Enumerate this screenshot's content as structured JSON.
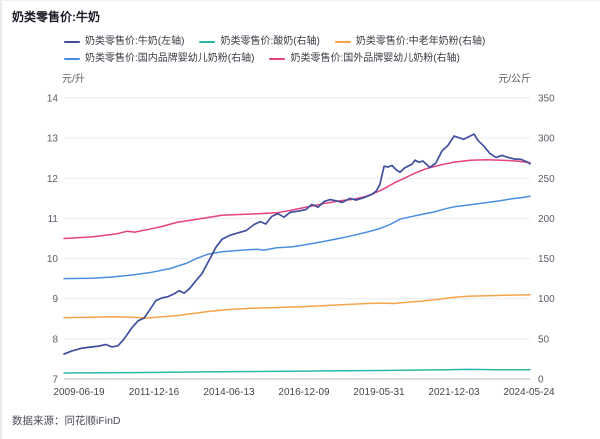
{
  "title": "奶类零售价:牛奶",
  "footer": {
    "source": "数据来源：同花顺iFinD"
  },
  "axes": {
    "left_unit": "元/升",
    "right_unit": "元/公斤"
  },
  "chart_data": {
    "type": "line",
    "title": "奶类零售价:牛奶",
    "grid": true,
    "legend_position": "top",
    "legend_rows": [
      [
        0,
        1,
        2
      ],
      [
        3,
        4
      ]
    ],
    "x_tick_labels": [
      "2009-06-19",
      "2011-12-16",
      "2014-06-13",
      "2016-12-09",
      "2019-05-31",
      "2021-12-03",
      "2024-05-24"
    ],
    "left_axis": {
      "unit": "元/升",
      "range": [
        7,
        14
      ],
      "ticks": [
        7,
        8,
        9,
        10,
        11,
        12,
        13,
        14
      ]
    },
    "right_axis": {
      "unit": "元/公斤",
      "range": [
        0,
        350
      ],
      "ticks": [
        0,
        50,
        100,
        150,
        200,
        250,
        300,
        350
      ]
    },
    "series": [
      {
        "name": "奶类零售价:牛奶(左轴)",
        "axis": "left",
        "color": "#3f4f9d",
        "points": [
          [
            0,
            7.62
          ],
          [
            0.017,
            7.7
          ],
          [
            0.039,
            7.77
          ],
          [
            0.06,
            7.8
          ],
          [
            0.075,
            7.82
          ],
          [
            0.09,
            7.86
          ],
          [
            0.103,
            7.8
          ],
          [
            0.116,
            7.83
          ],
          [
            0.129,
            8.0
          ],
          [
            0.146,
            8.28
          ],
          [
            0.159,
            8.45
          ],
          [
            0.172,
            8.52
          ],
          [
            0.185,
            8.74
          ],
          [
            0.197,
            8.95
          ],
          [
            0.21,
            9.02
          ],
          [
            0.223,
            9.05
          ],
          [
            0.236,
            9.12
          ],
          [
            0.247,
            9.2
          ],
          [
            0.258,
            9.14
          ],
          [
            0.27,
            9.26
          ],
          [
            0.283,
            9.45
          ],
          [
            0.296,
            9.62
          ],
          [
            0.311,
            9.95
          ],
          [
            0.326,
            10.28
          ],
          [
            0.339,
            10.48
          ],
          [
            0.356,
            10.58
          ],
          [
            0.373,
            10.64
          ],
          [
            0.391,
            10.7
          ],
          [
            0.408,
            10.85
          ],
          [
            0.421,
            10.92
          ],
          [
            0.433,
            10.86
          ],
          [
            0.446,
            11.05
          ],
          [
            0.459,
            11.12
          ],
          [
            0.472,
            11.03
          ],
          [
            0.485,
            11.15
          ],
          [
            0.502,
            11.18
          ],
          [
            0.519,
            11.22
          ],
          [
            0.532,
            11.35
          ],
          [
            0.545,
            11.28
          ],
          [
            0.558,
            11.42
          ],
          [
            0.571,
            11.47
          ],
          [
            0.584,
            11.44
          ],
          [
            0.597,
            11.4
          ],
          [
            0.614,
            11.5
          ],
          [
            0.627,
            11.46
          ],
          [
            0.644,
            11.52
          ],
          [
            0.661,
            11.6
          ],
          [
            0.67,
            11.68
          ],
          [
            0.678,
            11.85
          ],
          [
            0.687,
            12.3
          ],
          [
            0.695,
            12.28
          ],
          [
            0.704,
            12.32
          ],
          [
            0.712,
            12.22
          ],
          [
            0.721,
            12.15
          ],
          [
            0.73,
            12.25
          ],
          [
            0.738,
            12.3
          ],
          [
            0.747,
            12.35
          ],
          [
            0.753,
            12.45
          ],
          [
            0.762,
            12.4
          ],
          [
            0.77,
            12.43
          ],
          [
            0.785,
            12.27
          ],
          [
            0.798,
            12.38
          ],
          [
            0.811,
            12.68
          ],
          [
            0.824,
            12.82
          ],
          [
            0.837,
            13.05
          ],
          [
            0.85,
            13.0
          ],
          [
            0.858,
            12.97
          ],
          [
            0.871,
            13.05
          ],
          [
            0.88,
            13.1
          ],
          [
            0.888,
            12.95
          ],
          [
            0.901,
            12.8
          ],
          [
            0.914,
            12.62
          ],
          [
            0.927,
            12.52
          ],
          [
            0.94,
            12.57
          ],
          [
            0.953,
            12.52
          ],
          [
            0.966,
            12.48
          ],
          [
            0.981,
            12.47
          ],
          [
            0.991,
            12.42
          ],
          [
            1,
            12.36
          ]
        ]
      },
      {
        "name": "奶类零售价:酸奶(右轴)",
        "axis": "right",
        "color": "#28b8a8",
        "points": [
          [
            0,
            7.5
          ],
          [
            0.15,
            8
          ],
          [
            0.3,
            8.8
          ],
          [
            0.45,
            9.5
          ],
          [
            0.6,
            10.2
          ],
          [
            0.72,
            10.8
          ],
          [
            0.82,
            11.5
          ],
          [
            0.87,
            12
          ],
          [
            0.93,
            11.6
          ],
          [
            1,
            11.5
          ]
        ]
      },
      {
        "name": "奶类零售价:中老年奶粉(右轴)",
        "axis": "right",
        "color": "#f7a348",
        "points": [
          [
            0,
            76.5
          ],
          [
            0.06,
            77
          ],
          [
            0.103,
            77.5
          ],
          [
            0.146,
            77
          ],
          [
            0.178,
            76
          ],
          [
            0.21,
            77.5
          ],
          [
            0.242,
            79
          ],
          [
            0.275,
            81.5
          ],
          [
            0.307,
            84
          ],
          [
            0.35,
            86.5
          ],
          [
            0.403,
            88
          ],
          [
            0.457,
            89
          ],
          [
            0.511,
            90
          ],
          [
            0.564,
            91.5
          ],
          [
            0.618,
            93
          ],
          [
            0.65,
            94
          ],
          [
            0.682,
            94.5
          ],
          [
            0.708,
            94
          ],
          [
            0.736,
            95.5
          ],
          [
            0.768,
            97
          ],
          [
            0.8,
            99
          ],
          [
            0.833,
            101.5
          ],
          [
            0.865,
            103
          ],
          [
            0.897,
            103.5
          ],
          [
            0.929,
            104
          ],
          [
            0.961,
            104.5
          ],
          [
            1,
            105
          ]
        ]
      },
      {
        "name": "奶类零售价:国内品牌婴幼儿奶粉(右轴)",
        "axis": "right",
        "color": "#4b8ee0",
        "points": [
          [
            0,
            125
          ],
          [
            0.06,
            125.5
          ],
          [
            0.103,
            127
          ],
          [
            0.146,
            129.5
          ],
          [
            0.189,
            133
          ],
          [
            0.227,
            137.5
          ],
          [
            0.262,
            144
          ],
          [
            0.288,
            151
          ],
          [
            0.309,
            155.5
          ],
          [
            0.339,
            158.5
          ],
          [
            0.382,
            160.5
          ],
          [
            0.414,
            161.5
          ],
          [
            0.429,
            160.5
          ],
          [
            0.457,
            163.5
          ],
          [
            0.489,
            164.5
          ],
          [
            0.521,
            167.5
          ],
          [
            0.554,
            171
          ],
          [
            0.586,
            174.5
          ],
          [
            0.618,
            178.5
          ],
          [
            0.65,
            183
          ],
          [
            0.678,
            187.5
          ],
          [
            0.7,
            192.5
          ],
          [
            0.721,
            199
          ],
          [
            0.743,
            202
          ],
          [
            0.768,
            205
          ],
          [
            0.794,
            208
          ],
          [
            0.815,
            211.5
          ],
          [
            0.837,
            214.5
          ],
          [
            0.858,
            216
          ],
          [
            0.884,
            218
          ],
          [
            0.91,
            220
          ],
          [
            0.936,
            222
          ],
          [
            0.961,
            224.5
          ],
          [
            0.983,
            226
          ],
          [
            1,
            227.5
          ]
        ]
      },
      {
        "name": "奶类零售价:国外品牌婴幼儿奶粉(右轴)",
        "axis": "right",
        "color": "#e5417f",
        "points": [
          [
            0,
            175
          ],
          [
            0.06,
            177
          ],
          [
            0.114,
            181
          ],
          [
            0.135,
            184
          ],
          [
            0.152,
            183
          ],
          [
            0.178,
            186
          ],
          [
            0.21,
            190
          ],
          [
            0.242,
            195
          ],
          [
            0.275,
            198
          ],
          [
            0.307,
            201
          ],
          [
            0.339,
            204
          ],
          [
            0.382,
            205
          ],
          [
            0.421,
            206
          ],
          [
            0.457,
            207
          ],
          [
            0.494,
            211
          ],
          [
            0.528,
            215
          ],
          [
            0.562,
            219
          ],
          [
            0.592,
            222
          ],
          [
            0.622,
            224
          ],
          [
            0.644,
            227
          ],
          [
            0.665,
            231
          ],
          [
            0.687,
            237
          ],
          [
            0.708,
            244
          ],
          [
            0.73,
            250
          ],
          [
            0.751,
            256
          ],
          [
            0.777,
            262
          ],
          [
            0.807,
            266.5
          ],
          [
            0.837,
            270
          ],
          [
            0.871,
            272.5
          ],
          [
            0.906,
            273
          ],
          [
            0.94,
            272.5
          ],
          [
            0.97,
            271.5
          ],
          [
            1,
            269.5
          ]
        ]
      }
    ],
    "style": {
      "gridline_color": "#eaeaf2",
      "axisline_color": "#b7b7c2",
      "tick_label_color": "#5c5c66",
      "x_label_color": "#44444e"
    }
  }
}
